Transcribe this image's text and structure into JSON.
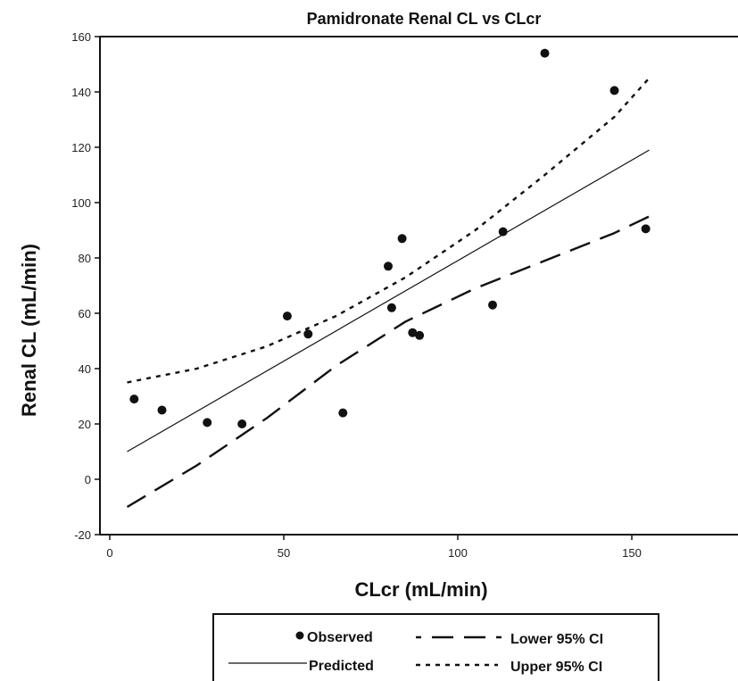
{
  "chart_data": {
    "type": "scatter",
    "title": "Pamidronate Renal CL vs CLcr",
    "xlabel": "CLcr (mL/min)",
    "ylabel": "Renal CL (mL/min)",
    "xlim": [
      0,
      180
    ],
    "ylim": [
      -20,
      160
    ],
    "xticks": [
      0,
      50,
      100,
      150
    ],
    "yticks": [
      -20,
      0,
      20,
      40,
      60,
      80,
      100,
      120,
      140,
      160
    ],
    "grid": false,
    "legend_position": "bottom",
    "series": [
      {
        "name": "Observed",
        "kind": "points",
        "color": "#111111",
        "x": [
          7,
          15,
          28,
          38,
          51,
          57,
          67,
          80,
          81,
          84,
          87,
          89,
          110,
          113,
          125,
          145,
          154
        ],
        "y": [
          29,
          25,
          20.5,
          20,
          59,
          52.5,
          24,
          77,
          62,
          87,
          53,
          52,
          63,
          89.5,
          154,
          140.5,
          90.5
        ]
      },
      {
        "name": "Predicted",
        "kind": "line",
        "dash": "solid",
        "color": "#111111",
        "x": [
          5,
          155
        ],
        "y": [
          10,
          119
        ]
      },
      {
        "name": "Lower 95% CI",
        "kind": "line",
        "dash": "long-dash",
        "color": "#111111",
        "x": [
          5,
          25,
          45,
          65,
          85,
          105,
          125,
          145,
          155
        ],
        "y": [
          -10,
          5,
          22,
          41,
          57,
          69,
          79,
          89,
          95
        ]
      },
      {
        "name": "Upper 95% CI",
        "kind": "line",
        "dash": "dotted",
        "color": "#111111",
        "x": [
          5,
          25,
          45,
          65,
          85,
          105,
          125,
          145,
          155
        ],
        "y": [
          35,
          40,
          48,
          59,
          73,
          90,
          110,
          131,
          145
        ]
      }
    ]
  }
}
